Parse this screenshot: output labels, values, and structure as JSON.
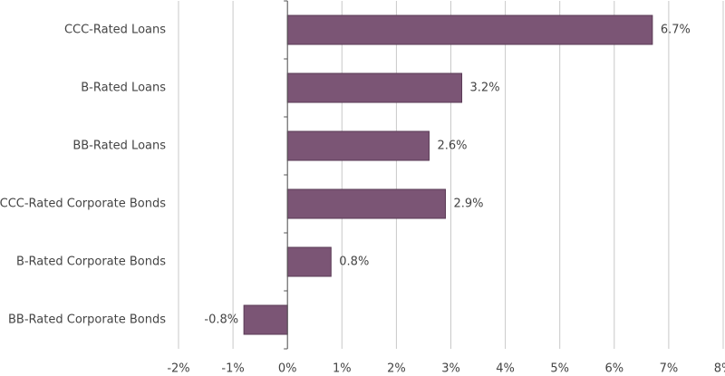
{
  "chart_data": {
    "type": "bar",
    "orientation": "horizontal",
    "categories": [
      "CCC-Rated Loans",
      "B-Rated Loans",
      "BB-Rated Loans",
      "CCC-Rated Corporate Bonds",
      "B-Rated Corporate Bonds",
      "BB-Rated Corporate Bonds"
    ],
    "values": [
      6.7,
      3.2,
      2.6,
      2.9,
      0.8,
      -0.8
    ],
    "value_labels": [
      "6.7%",
      "3.2%",
      "2.6%",
      "2.9%",
      "0.8%",
      "-0.8%"
    ],
    "color": "#7b5575",
    "xlim": [
      -2,
      8
    ],
    "xticks": [
      {
        "value": -2,
        "label": "-2%"
      },
      {
        "value": -1,
        "label": "-1%"
      },
      {
        "value": 0,
        "label": "0%"
      },
      {
        "value": 1,
        "label": "1%"
      },
      {
        "value": 2,
        "label": "2%"
      },
      {
        "value": 3,
        "label": "3%"
      },
      {
        "value": 4,
        "label": "4%"
      },
      {
        "value": 5,
        "label": "5%"
      },
      {
        "value": 6,
        "label": "6%"
      },
      {
        "value": 7,
        "label": "7%"
      },
      {
        "value": 8,
        "label": "8%"
      }
    ],
    "grid": true
  }
}
